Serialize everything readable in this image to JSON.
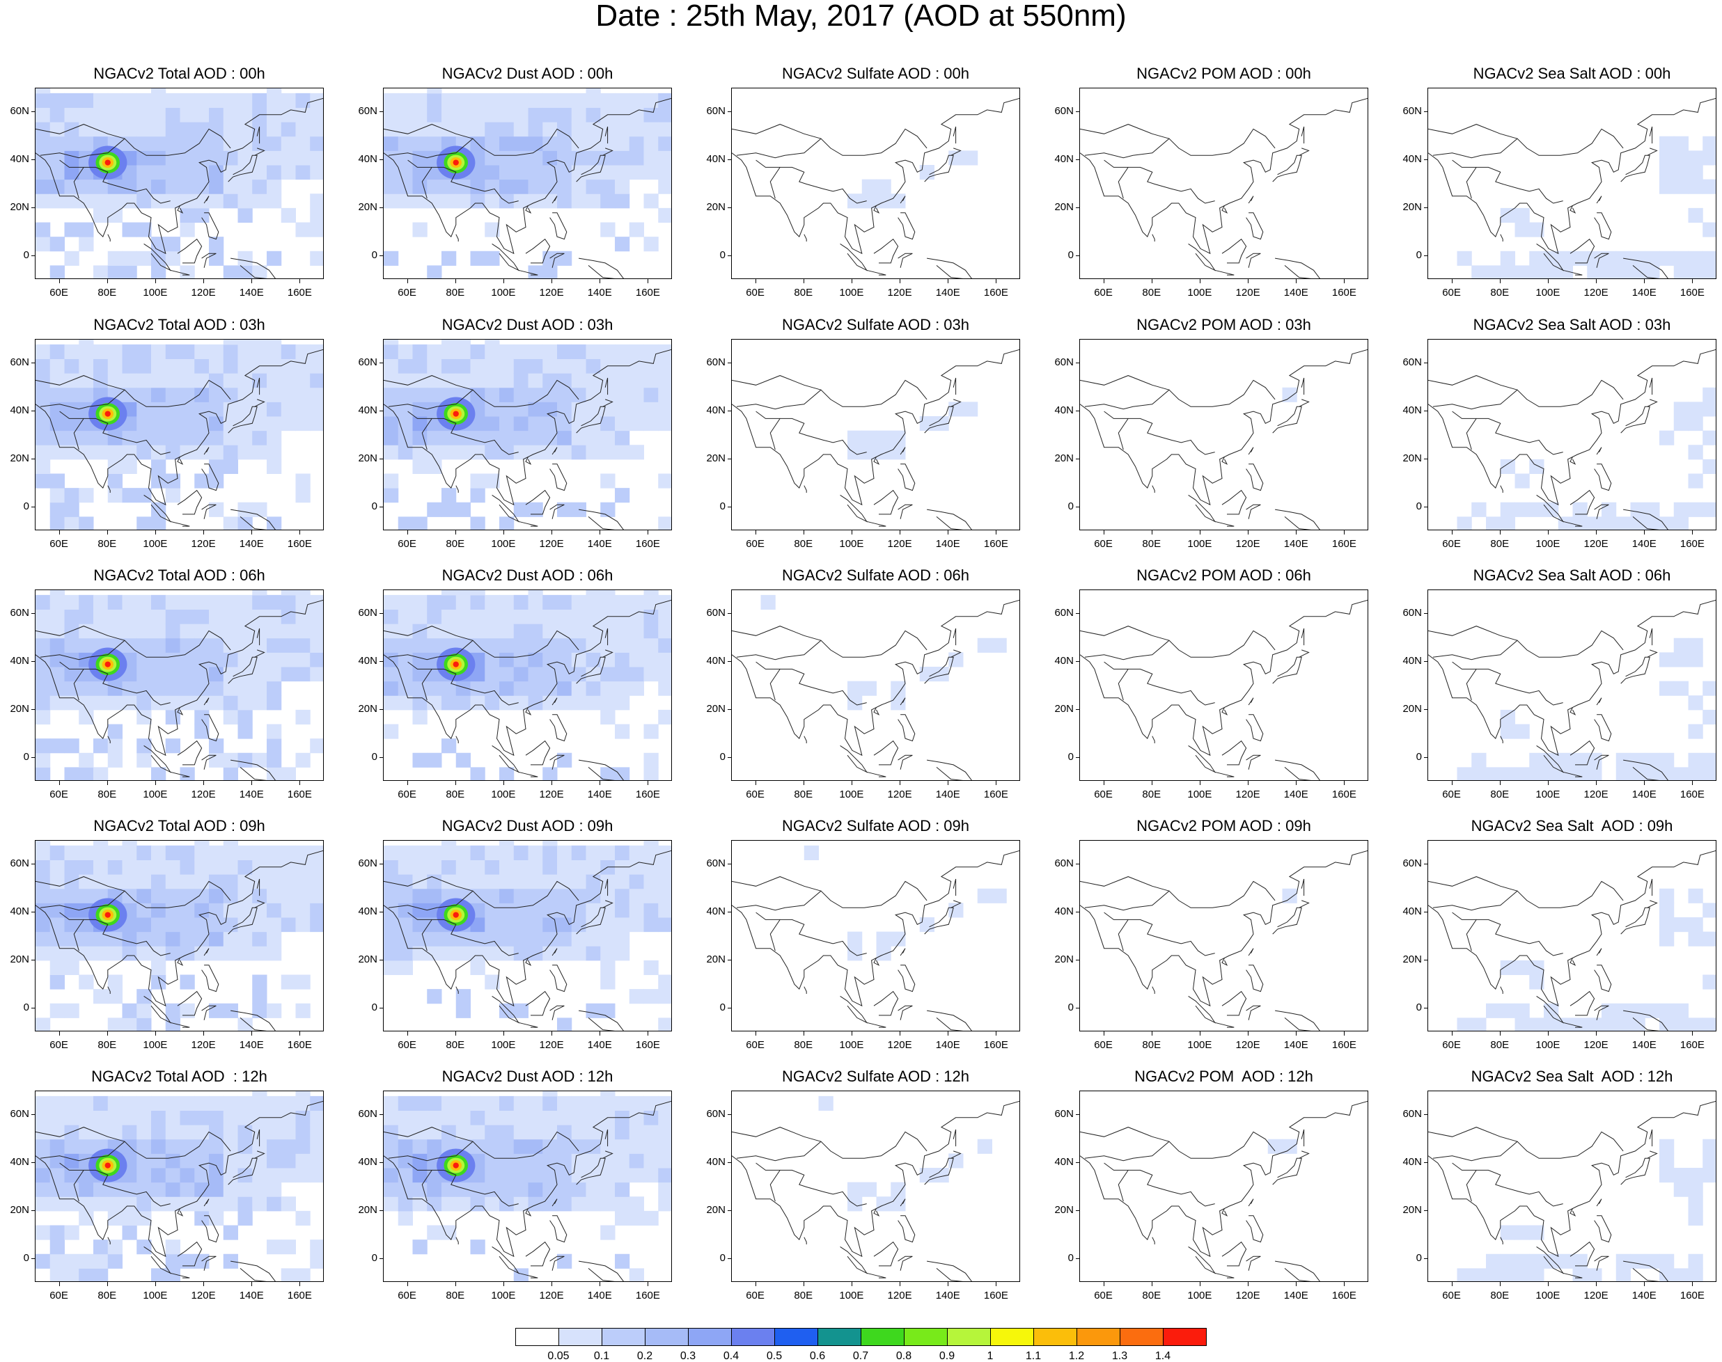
{
  "title": "Date : 25th May, 2017 (AOD at 550nm)",
  "lat_labels": [
    "60N",
    "40N",
    "20N",
    "0"
  ],
  "lon_labels": [
    "60E",
    "80E",
    "100E",
    "120E",
    "140E",
    "160E"
  ],
  "panels": [
    [
      "NGACv2 Total AOD : 00h",
      "NGACv2 Dust AOD : 00h",
      "NGACv2 Sulfate AOD : 00h",
      "NGACv2 POM AOD : 00h",
      "NGACv2 Sea Salt AOD : 00h"
    ],
    [
      "NGACv2 Total AOD : 03h",
      "NGACv2 Dust AOD : 03h",
      "NGACv2 Sulfate AOD : 03h",
      "NGACv2 POM AOD : 03h",
      "NGACv2 Sea Salt AOD : 03h"
    ],
    [
      "NGACv2 Total AOD : 06h",
      "NGACv2 Dust AOD : 06h",
      "NGACv2 Sulfate AOD : 06h",
      "NGACv2 POM AOD : 06h",
      "NGACv2 Sea Salt AOD : 06h"
    ],
    [
      "NGACv2 Total AOD : 09h",
      "NGACv2 Dust AOD : 09h",
      "NGACv2 Sulfate AOD : 09h",
      "NGACv2 POM AOD : 09h",
      "NGACv2 Sea Salt  AOD : 09h"
    ],
    [
      "NGACv2 Total AOD  : 12h",
      "NGACv2 Dust AOD : 12h",
      "NGACv2 Sulfate AOD : 12h",
      "NGACv2 POM  AOD : 12h",
      "NGACv2 Sea Salt  AOD : 12h"
    ]
  ],
  "colorbar": {
    "labels": [
      "0.05",
      "0.1",
      "0.2",
      "0.3",
      "0.4",
      "0.5",
      "0.6",
      "0.7",
      "0.8",
      "0.9",
      "1",
      "1.1",
      "1.2",
      "1.3",
      "1.4"
    ],
    "colors": [
      "#ffffff",
      "#d7e2fc",
      "#bccdfa",
      "#a6bbf7",
      "#8ea6f5",
      "#6b80ef",
      "#1f5ff0",
      "#13938f",
      "#3ed81e",
      "#78ea1a",
      "#b6f53a",
      "#f6f70a",
      "#fbbe0a",
      "#fb980c",
      "#fb6d0f",
      "#fb1c0c"
    ]
  }
}
